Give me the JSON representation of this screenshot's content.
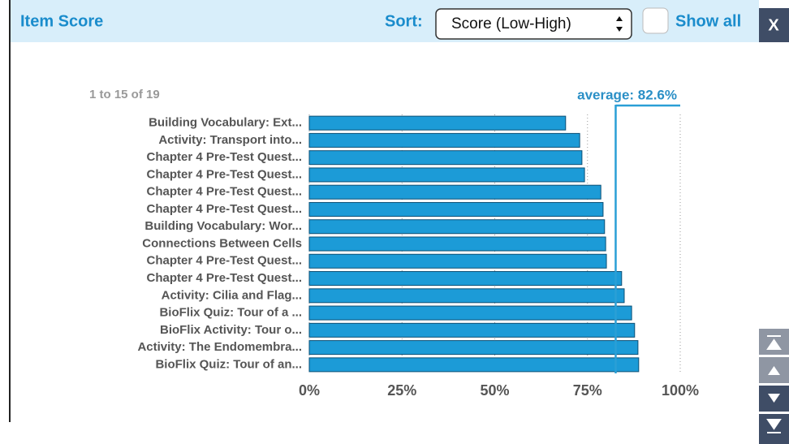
{
  "header": {
    "title": "Item Score",
    "sort_label": "Sort:",
    "sort_value": "Score (Low-High)",
    "show_all": "Show all",
    "close": "X"
  },
  "chart_data": {
    "type": "bar",
    "orientation": "horizontal",
    "range_text": "1 to 15 of 19",
    "categories": [
      "Building Vocabulary: Ext...",
      "Activity: Transport into...",
      "Chapter 4 Pre-Test Quest...",
      "Chapter 4 Pre-Test Quest...",
      "Chapter 4 Pre-Test Quest...",
      "Chapter 4 Pre-Test Quest...",
      "Building Vocabulary: Wor...",
      "Connections Between Cells",
      "Chapter 4 Pre-Test Quest...",
      "Chapter 4 Pre-Test Quest...",
      "Activity: Cilia and Flag...",
      "BioFlix Quiz: Tour of a ...",
      "BioFlix Activity: Tour o...",
      "Activity: The Endomembra...",
      "BioFlix Quiz: Tour of an..."
    ],
    "values": [
      69.1,
      72.9,
      73.5,
      74.2,
      78.6,
      79.2,
      79.6,
      79.9,
      80.1,
      84.2,
      84.9,
      86.9,
      87.7,
      88.6,
      88.8
    ],
    "color": "#1c9bd7",
    "average": {
      "value": 82.6,
      "label": "average: 82.6%"
    },
    "xlim": [
      0,
      100
    ],
    "xticks": [
      {
        "value": 0,
        "label": "0%"
      },
      {
        "value": 25,
        "label": "25%"
      },
      {
        "value": 50,
        "label": "50%"
      },
      {
        "value": 75,
        "label": "75%"
      },
      {
        "value": 100,
        "label": "100%"
      }
    ],
    "grid": true
  }
}
